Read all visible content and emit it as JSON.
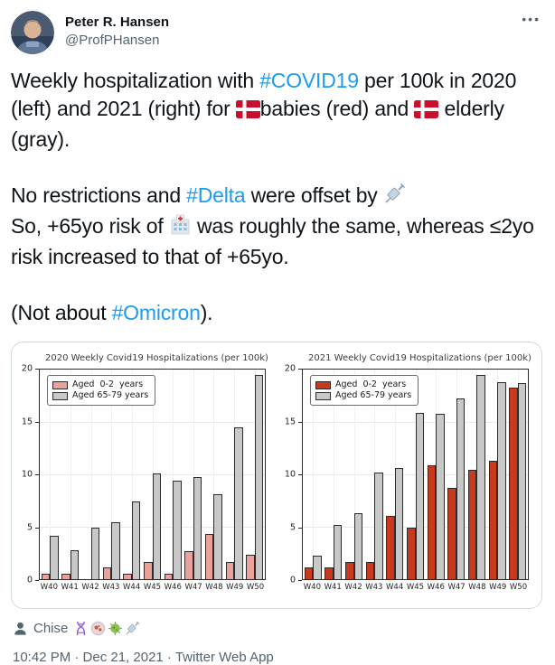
{
  "header": {
    "name": "Peter R. Hansen",
    "handle": "@ProfPHansen",
    "more_icon": "•••"
  },
  "tweet": {
    "p1": {
      "t1": "Weekly hospitalization with ",
      "hashtag1": "#COVID19",
      "t2": " per 100k in 2020 (left) and 2021 (right) for ",
      "t3": "babies (red) and ",
      "t4": " elderly (gray)."
    },
    "p2": {
      "t1": "No restrictions and ",
      "hashtag1": "#Delta",
      "t2": " were offset by ",
      "t3": "So, +65yo risk of ",
      "t4": " was roughly the same, whereas ≤2yo risk increased to that of +65yo."
    },
    "p3": {
      "t1": "(Not about ",
      "hashtag1": "#Omicron",
      "t2": ")."
    }
  },
  "attribution": {
    "name": "Chise",
    "icons": [
      "dna-icon",
      "petri-dish-icon",
      "microbe-icon",
      "syringe-icon"
    ]
  },
  "meta": {
    "text": "10:42 PM · Dec 21, 2021 · Twitter Web App"
  },
  "colors": {
    "link": "#1d9bf0",
    "text": "#0f1419",
    "secondary": "#536471",
    "figure_border": "#cfd9de",
    "bar_red_2020": "#E9A199",
    "bar_red_2021": "#C93A1C",
    "bar_gray": "#C8C8C8",
    "bar_edge": "#2b2b2b",
    "denmark_flag_red": "#c8102e"
  },
  "chart_data": [
    {
      "type": "bar",
      "title": "2020 Weekly Covid19 Hospitalizations (per 100k)",
      "categories": [
        "W40",
        "W41",
        "W42",
        "W43",
        "W44",
        "W45",
        "W46",
        "W47",
        "W48",
        "W49",
        "W50"
      ],
      "series": [
        {
          "name": "Aged  0-2  years",
          "color": "#E9A199",
          "values": [
            0.5,
            0.5,
            0.0,
            1.1,
            0.5,
            1.6,
            0.5,
            2.7,
            4.3,
            1.6,
            2.3
          ]
        },
        {
          "name": "Aged 65-79 years",
          "color": "#C8C8C8",
          "values": [
            4.1,
            2.8,
            4.9,
            5.4,
            7.4,
            10.1,
            9.4,
            9.7,
            8.1,
            14.5,
            19.5
          ]
        }
      ],
      "ylim": [
        0,
        20
      ],
      "yticks": [
        0,
        5,
        10,
        15,
        20
      ],
      "grid": true,
      "legend_position": "upper-left",
      "bar_edge_color": "#2b2b2b"
    },
    {
      "type": "bar",
      "title": "2021 Weekly Covid19 Hospitalizations (per 100k)",
      "categories": [
        "W40",
        "W41",
        "W42",
        "W43",
        "W44",
        "W45",
        "W46",
        "W47",
        "W48",
        "W49",
        "W50"
      ],
      "series": [
        {
          "name": "Aged  0-2  years",
          "color": "#C93A1C",
          "values": [
            1.1,
            1.1,
            1.6,
            1.6,
            6.0,
            4.9,
            10.9,
            8.7,
            10.4,
            11.3,
            18.3
          ]
        },
        {
          "name": "Aged 65-79 years",
          "color": "#C8C8C8",
          "values": [
            2.2,
            5.2,
            6.3,
            10.2,
            10.6,
            15.9,
            15.8,
            17.2,
            19.5,
            18.8,
            18.7
          ]
        }
      ],
      "ylim": [
        0,
        20
      ],
      "yticks": [
        0,
        5,
        10,
        15,
        20
      ],
      "grid": true,
      "legend_position": "upper-left",
      "bar_edge_color": "#2b2b2b"
    }
  ]
}
